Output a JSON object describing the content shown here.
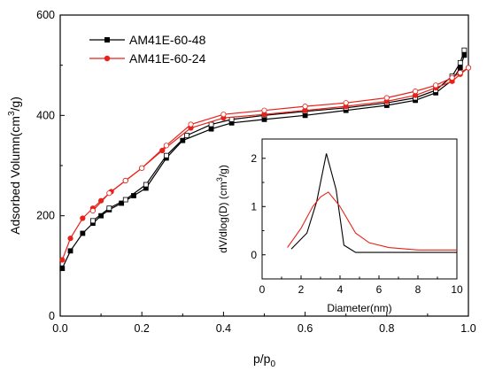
{
  "chart_data": [
    {
      "type": "line",
      "xlabel": "p/p",
      "xlabel_subscript": "0",
      "ylabel": "Adsorbed Volumn(cm",
      "ylabel_superscript": "3",
      "ylabel_suffix": "/g)",
      "xlim": [
        0.0,
        1.0
      ],
      "ylim": [
        0,
        600
      ],
      "xticks": [
        0.0,
        0.2,
        0.4,
        0.6,
        0.8,
        1.0
      ],
      "xtick_labels": [
        "0.0",
        "0.2",
        "0.4",
        "0.6",
        "0.8",
        "1.0"
      ],
      "yticks": [
        0,
        200,
        400,
        600
      ],
      "ytick_labels": [
        "0",
        "200",
        "400",
        "600"
      ],
      "legend_position": "top-left",
      "series": [
        {
          "name": "AM41E-60-48",
          "color": "#000000",
          "marker": "square",
          "adsorption": {
            "x": [
              0.005,
              0.025,
              0.055,
              0.08,
              0.1,
              0.12,
              0.15,
              0.18,
              0.21,
              0.26,
              0.3,
              0.37,
              0.42,
              0.5,
              0.6,
              0.7,
              0.8,
              0.87,
              0.92,
              0.96,
              0.98,
              0.99
            ],
            "y": [
              95,
              130,
              165,
              185,
              200,
              212,
              225,
              240,
              255,
              315,
              350,
              373,
              385,
              392,
              400,
              410,
              420,
              430,
              445,
              470,
              495,
              520
            ]
          },
          "desorption": {
            "x": [
              0.99,
              0.98,
              0.96,
              0.92,
              0.87,
              0.8,
              0.7,
              0.6,
              0.5,
              0.42,
              0.37,
              0.31,
              0.26,
              0.21,
              0.16,
              0.12,
              0.08
            ],
            "y": [
              530,
              505,
              478,
              450,
              435,
              425,
              415,
              408,
              400,
              392,
              382,
              360,
              320,
              262,
              232,
              215,
              190
            ]
          }
        },
        {
          "name": "AM41E-60-24",
          "color": "#e8221a",
          "marker": "circle",
          "adsorption": {
            "x": [
              0.005,
              0.025,
              0.055,
              0.08,
              0.1,
              0.125,
              0.16,
              0.2,
              0.25,
              0.32,
              0.4,
              0.5,
              0.6,
              0.7,
              0.8,
              0.87,
              0.92,
              0.96,
              0.98,
              1.0
            ],
            "y": [
              112,
              155,
              195,
              215,
              230,
              248,
              270,
              295,
              330,
              375,
              395,
              402,
              410,
              418,
              428,
              440,
              455,
              468,
              482,
              495
            ]
          },
          "desorption": {
            "x": [
              1.0,
              0.98,
              0.96,
              0.92,
              0.87,
              0.8,
              0.7,
              0.6,
              0.5,
              0.4,
              0.32,
              0.26,
              0.2,
              0.16,
              0.12,
              0.08
            ],
            "y": [
              495,
              485,
              475,
              460,
              448,
              435,
              425,
              418,
              410,
              402,
              382,
              340,
              295,
              270,
              245,
              210
            ]
          }
        }
      ]
    },
    {
      "type": "line",
      "inset": true,
      "xlabel": "Diameter(nm)",
      "ylabel": "dV/dlog(D) (cm",
      "ylabel_superscript": "3",
      "ylabel_suffix": "/g)",
      "xlim": [
        0,
        10
      ],
      "ylim": [
        -0.5,
        2.4
      ],
      "xticks": [
        0,
        2,
        4,
        6,
        8,
        10
      ],
      "xtick_labels": [
        "0",
        "2",
        "4",
        "6",
        "8",
        "10"
      ],
      "yticks": [
        0,
        1,
        2
      ],
      "ytick_labels": [
        "0",
        "1",
        "2"
      ],
      "series": [
        {
          "color": "#000000",
          "x": [
            1.5,
            2.3,
            2.8,
            3.3,
            3.8,
            4.2,
            4.8,
            5.5,
            7,
            10
          ],
          "y": [
            0.12,
            0.45,
            1.1,
            2.1,
            1.35,
            0.2,
            0.05,
            0.05,
            0.05,
            0.05
          ]
        },
        {
          "color": "#e8221a",
          "x": [
            1.3,
            2.0,
            2.6,
            3.0,
            3.4,
            4.0,
            4.8,
            5.5,
            6.5,
            8,
            10
          ],
          "y": [
            0.15,
            0.55,
            1.0,
            1.2,
            1.3,
            1.0,
            0.45,
            0.25,
            0.15,
            0.1,
            0.1
          ]
        }
      ]
    }
  ]
}
